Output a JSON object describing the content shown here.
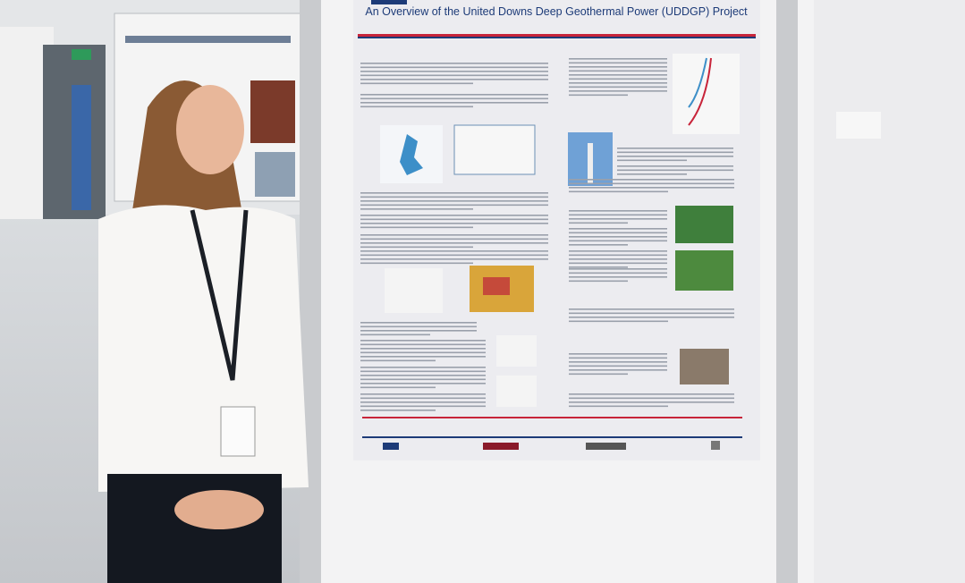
{
  "poster": {
    "title": "An Overview of the United Downs Deep Geothermal Power (UDDGP) Project"
  }
}
